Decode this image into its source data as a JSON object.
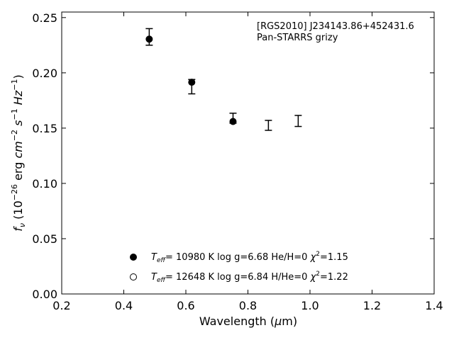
{
  "chart_data": {
    "type": "scatter",
    "title": "",
    "xlabel": "Wavelength (μm)",
    "ylabel": "f_ν (10^-26 erg cm^-2 s^-1 Hz^-1)",
    "xlim": [
      0.2,
      1.4
    ],
    "ylim": [
      0.0,
      0.255
    ],
    "x_ticks": [
      "0.2",
      "0.4",
      "0.6",
      "0.8",
      "1.0",
      "1.2",
      "1.4"
    ],
    "y_ticks": [
      "0.00",
      "0.05",
      "0.10",
      "0.15",
      "0.20",
      "0.25"
    ],
    "grid": false,
    "annotation_lines": [
      "[RGS2010] J234143.86+452431.6",
      "Pan-STARRS grizy"
    ],
    "observed": [
      {
        "x": 0.482,
        "y": 0.2325,
        "err": 0.0075
      },
      {
        "x": 0.619,
        "y": 0.1875,
        "err": 0.0065
      },
      {
        "x": 0.752,
        "y": 0.159,
        "err": 0.0045
      },
      {
        "x": 0.866,
        "y": 0.1525,
        "err": 0.0045
      },
      {
        "x": 0.962,
        "y": 0.1565,
        "err": 0.005
      }
    ],
    "series": [
      {
        "name": "Teff= 10980 K  log g=6.68  He/H=0  χ2=1.15",
        "marker": "filled-circle",
        "points": [
          {
            "x": 0.482,
            "y": 0.2305
          },
          {
            "x": 0.619,
            "y": 0.1915
          },
          {
            "x": 0.752,
            "y": 0.156
          }
        ]
      },
      {
        "name": "Teff= 12648 K  log g=6.84  H/He=0  χ2=1.22",
        "marker": "open-circle",
        "points": []
      }
    ],
    "legend_placement": "lower-center",
    "legend": [
      {
        "teff_value": "= 10980 K  log g=6.68  He/H=0  ",
        "chi_value": "=1.15"
      },
      {
        "teff_value": "= 12648 K  log g=6.84  H/He=0  ",
        "chi_value": "=1.22"
      }
    ]
  }
}
